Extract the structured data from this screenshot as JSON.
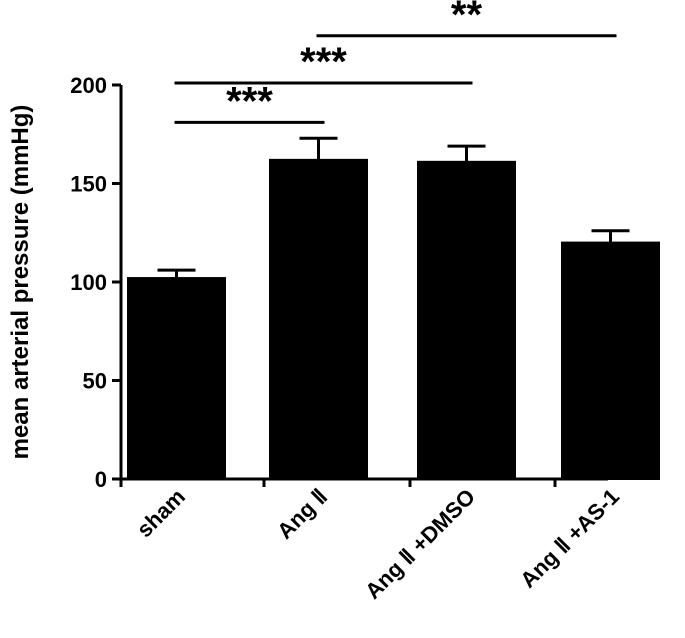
{
  "chart_data": {
    "type": "bar",
    "title": "",
    "xlabel": "",
    "ylabel": "mean arterial pressure (mmHg)",
    "ylim": [
      0,
      200
    ],
    "yticks": [
      0,
      50,
      100,
      150,
      200
    ],
    "categories": [
      "sham",
      "Ang Ⅱ",
      "Ang Ⅱ +DMSO",
      "Ang Ⅱ +AS-1"
    ],
    "values": [
      102,
      162,
      161,
      120
    ],
    "errors": [
      4,
      11,
      8,
      6
    ],
    "bar_color": "#000000",
    "grid": false,
    "legend": "none",
    "significance": [
      {
        "from": 0,
        "to": 1,
        "label": "***",
        "level": 181
      },
      {
        "from": 0,
        "to": 2,
        "label": "***",
        "level": 201
      },
      {
        "from": 1,
        "to": 3,
        "label": "**",
        "level": 225
      }
    ]
  }
}
